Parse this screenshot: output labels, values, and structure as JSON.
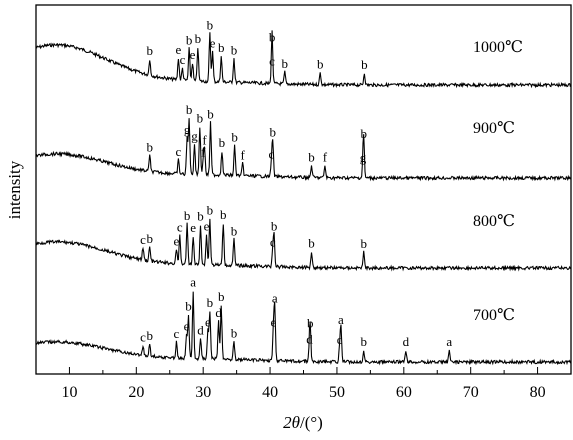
{
  "chart_data": {
    "type": "line",
    "xlabel_italic": "2θ",
    "xlabel_unit": "/(°)",
    "ylabel": "intensity",
    "xlim": [
      5,
      85
    ],
    "x_ticks": [
      10,
      20,
      30,
      40,
      50,
      60,
      70,
      80
    ],
    "grid": false,
    "legend": "none",
    "series": [
      {
        "name": "1000℃",
        "baseline": 40,
        "peaks": [
          {
            "x": 22.0,
            "h": 16,
            "label": "b"
          },
          {
            "x": 26.3,
            "h": 22,
            "label": "e"
          },
          {
            "x": 26.9,
            "h": 12,
            "label": "c"
          },
          {
            "x": 27.9,
            "h": 32,
            "label": "b"
          },
          {
            "x": 28.4,
            "h": 18,
            "label": "e"
          },
          {
            "x": 29.2,
            "h": 34,
            "label": "b"
          },
          {
            "x": 31.0,
            "h": 48,
            "label": "b"
          },
          {
            "x": 31.4,
            "h": 30,
            "label": "e"
          },
          {
            "x": 32.7,
            "h": 26,
            "label": "b"
          },
          {
            "x": 34.6,
            "h": 24,
            "label": "b"
          },
          {
            "x": 40.3,
            "h": 14,
            "label": "c"
          },
          {
            "x": 40.3,
            "h": 38,
            "label": "b"
          },
          {
            "x": 42.2,
            "h": 12,
            "label": "b"
          },
          {
            "x": 47.5,
            "h": 12,
            "label": "b"
          },
          {
            "x": 54.1,
            "h": 12,
            "label": "b"
          }
        ]
      },
      {
        "name": "900℃",
        "baseline": 24,
        "peaks": [
          {
            "x": 22.0,
            "h": 16,
            "label": "b"
          },
          {
            "x": 26.3,
            "h": 14,
            "label": "c"
          },
          {
            "x": 27.6,
            "h": 36,
            "label": "g"
          },
          {
            "x": 27.9,
            "h": 56,
            "label": "b"
          },
          {
            "x": 28.7,
            "h": 30,
            "label": "g"
          },
          {
            "x": 29.5,
            "h": 48,
            "label": "b"
          },
          {
            "x": 30.0,
            "h": 14,
            "label": "f"
          },
          {
            "x": 30.2,
            "h": 26,
            "label": "f"
          },
          {
            "x": 31.1,
            "h": 52,
            "label": "b"
          },
          {
            "x": 32.8,
            "h": 24,
            "label": "b"
          },
          {
            "x": 34.7,
            "h": 30,
            "label": "b"
          },
          {
            "x": 35.9,
            "h": 12,
            "label": "f"
          },
          {
            "x": 40.2,
            "h": 14,
            "label": "c"
          },
          {
            "x": 40.4,
            "h": 36,
            "label": "b"
          },
          {
            "x": 46.2,
            "h": 12,
            "label": "b"
          },
          {
            "x": 48.2,
            "h": 12,
            "label": "f"
          },
          {
            "x": 53.9,
            "h": 12,
            "label": "g"
          },
          {
            "x": 54.0,
            "h": 36,
            "label": "b"
          }
        ]
      },
      {
        "name": "800℃",
        "baseline": 26,
        "peaks": [
          {
            "x": 21.0,
            "h": 12,
            "label": "c"
          },
          {
            "x": 22.0,
            "h": 14,
            "label": "b"
          },
          {
            "x": 26.0,
            "h": 14,
            "label": "e"
          },
          {
            "x": 26.5,
            "h": 28,
            "label": "c"
          },
          {
            "x": 27.6,
            "h": 40,
            "label": "b"
          },
          {
            "x": 28.5,
            "h": 28,
            "label": "e"
          },
          {
            "x": 29.6,
            "h": 40,
            "label": "b"
          },
          {
            "x": 30.5,
            "h": 30,
            "label": "e"
          },
          {
            "x": 31.0,
            "h": 46,
            "label": "b"
          },
          {
            "x": 33.0,
            "h": 42,
            "label": "b"
          },
          {
            "x": 34.6,
            "h": 26,
            "label": "b"
          },
          {
            "x": 40.4,
            "h": 16,
            "label": "c"
          },
          {
            "x": 40.6,
            "h": 32,
            "label": "b"
          },
          {
            "x": 46.2,
            "h": 16,
            "label": "b"
          },
          {
            "x": 54.0,
            "h": 16,
            "label": "b"
          }
        ]
      },
      {
        "name": "700℃",
        "baseline": 20,
        "peaks": [
          {
            "x": 21.0,
            "h": 10,
            "label": "c"
          },
          {
            "x": 22.0,
            "h": 12,
            "label": "b"
          },
          {
            "x": 26.0,
            "h": 16,
            "label": "c"
          },
          {
            "x": 27.5,
            "h": 24,
            "label": "e"
          },
          {
            "x": 27.8,
            "h": 44,
            "label": "b"
          },
          {
            "x": 28.5,
            "h": 68,
            "label": "a"
          },
          {
            "x": 29.6,
            "h": 20,
            "label": "d"
          },
          {
            "x": 30.7,
            "h": 28,
            "label": "e"
          },
          {
            "x": 31.0,
            "h": 48,
            "label": "b"
          },
          {
            "x": 32.3,
            "h": 38,
            "label": "d"
          },
          {
            "x": 32.7,
            "h": 54,
            "label": "b"
          },
          {
            "x": 34.6,
            "h": 18,
            "label": "b"
          },
          {
            "x": 40.5,
            "h": 30,
            "label": "e"
          },
          {
            "x": 40.7,
            "h": 54,
            "label": "a"
          },
          {
            "x": 45.9,
            "h": 14,
            "label": "d"
          },
          {
            "x": 46.0,
            "h": 30,
            "label": "b"
          },
          {
            "x": 50.4,
            "h": 14,
            "label": "c"
          },
          {
            "x": 50.6,
            "h": 34,
            "label": "a"
          },
          {
            "x": 54.0,
            "h": 12,
            "label": "b"
          },
          {
            "x": 60.3,
            "h": 12,
            "label": "d"
          },
          {
            "x": 66.8,
            "h": 12,
            "label": "a"
          }
        ]
      }
    ]
  }
}
